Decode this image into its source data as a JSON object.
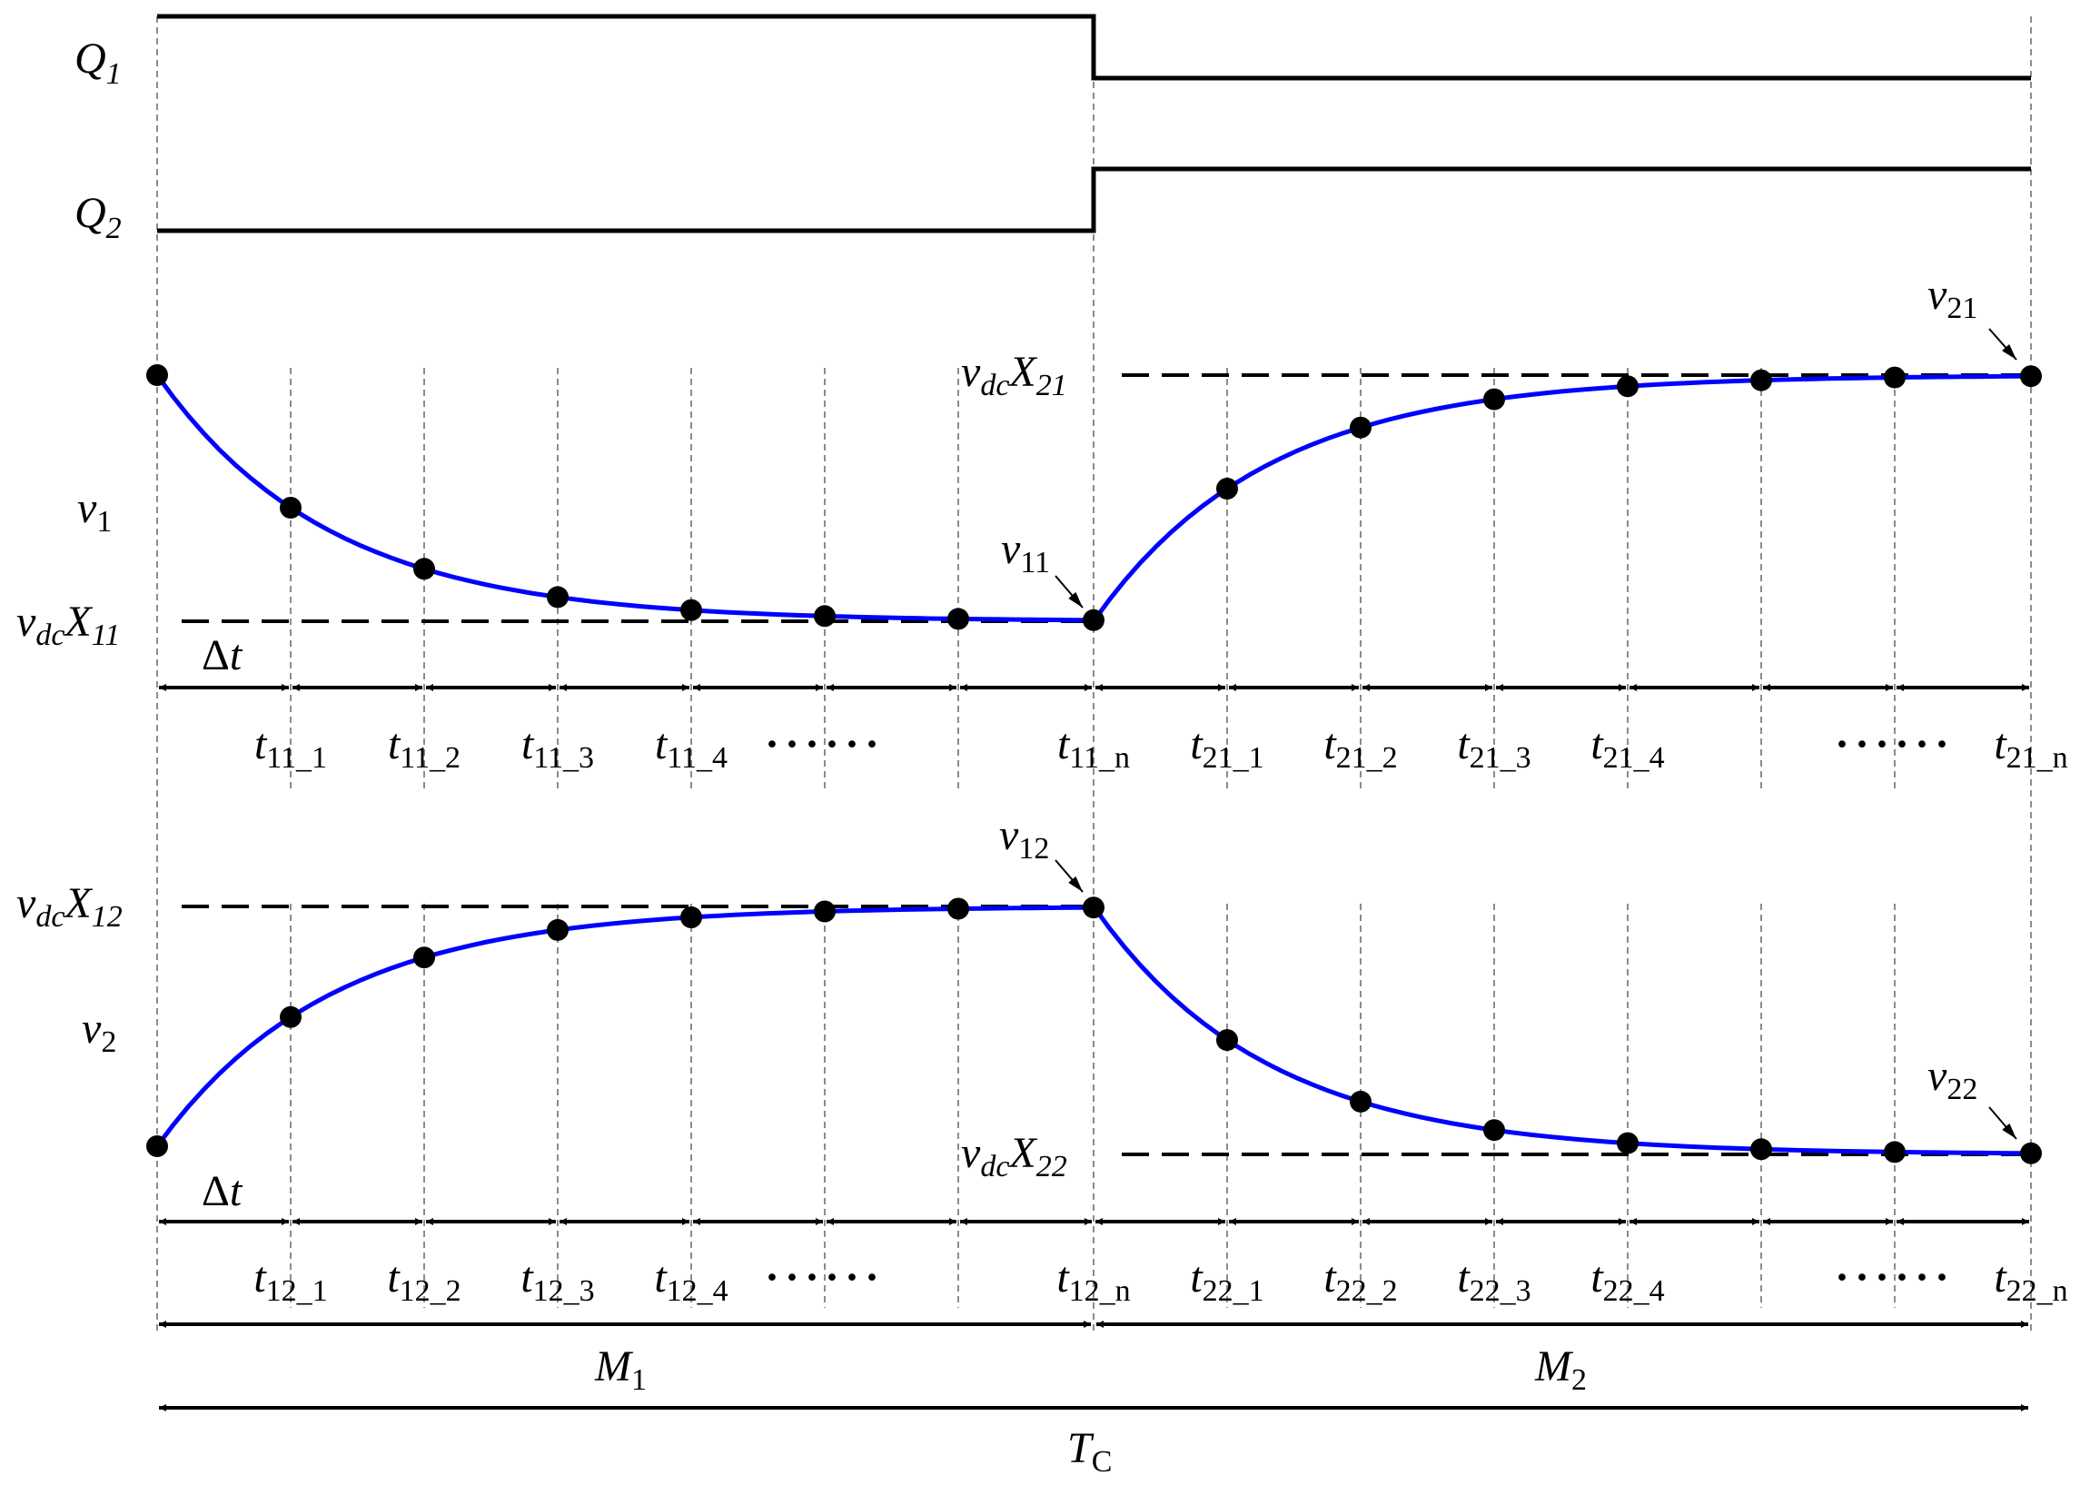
{
  "colors": {
    "waveform": "#0000ff",
    "lines": "#000000",
    "background": "#ffffff"
  },
  "signals": {
    "q1": {
      "base": "Q",
      "sub": "1"
    },
    "q2": {
      "base": "Q",
      "sub": "2"
    },
    "v1": {
      "base": "v",
      "sub": "1"
    },
    "v2": {
      "base": "v",
      "sub": "2"
    }
  },
  "levels": {
    "x11": {
      "pre": "v",
      "pre_sub": "dc",
      "base": "X",
      "sub": "11"
    },
    "x21": {
      "pre": "v",
      "pre_sub": "dc",
      "base": "X",
      "sub": "21"
    },
    "x12": {
      "pre": "v",
      "pre_sub": "dc",
      "base": "X",
      "sub": "12"
    },
    "x22": {
      "pre": "v",
      "pre_sub": "dc",
      "base": "X",
      "sub": "22"
    }
  },
  "points": {
    "v11": {
      "base": "v",
      "sub": "11"
    },
    "v21": {
      "base": "v",
      "sub": "21"
    },
    "v12": {
      "base": "v",
      "sub": "12"
    },
    "v22": {
      "base": "v",
      "sub": "22"
    }
  },
  "delta": {
    "sym": "Δ",
    "var": "t"
  },
  "time_labels_1": [
    {
      "base": "t",
      "sub": "11_1"
    },
    {
      "base": "t",
      "sub": "11_2"
    },
    {
      "base": "t",
      "sub": "11_3"
    },
    {
      "base": "t",
      "sub": "11_4"
    },
    {
      "text": "······"
    },
    {
      "base": "t",
      "sub": "11_n"
    },
    {
      "base": "t",
      "sub": "21_1"
    },
    {
      "base": "t",
      "sub": "21_2"
    },
    {
      "base": "t",
      "sub": "21_3"
    },
    {
      "base": "t",
      "sub": "21_4"
    },
    {
      "text": "······"
    },
    {
      "base": "t",
      "sub": "21_n"
    }
  ],
  "time_labels_2": [
    {
      "base": "t",
      "sub": "12_1"
    },
    {
      "base": "t",
      "sub": "12_2"
    },
    {
      "base": "t",
      "sub": "12_3"
    },
    {
      "base": "t",
      "sub": "12_4"
    },
    {
      "text": "······"
    },
    {
      "base": "t",
      "sub": "12_n"
    },
    {
      "base": "t",
      "sub": "22_1"
    },
    {
      "base": "t",
      "sub": "22_2"
    },
    {
      "base": "t",
      "sub": "22_3"
    },
    {
      "base": "t",
      "sub": "22_4"
    },
    {
      "text": "······"
    },
    {
      "base": "t",
      "sub": "22_n"
    }
  ],
  "spans": {
    "m1": {
      "base": "M",
      "sub": "1"
    },
    "m2": {
      "base": "M",
      "sub": "2"
    },
    "tc": {
      "base": "T",
      "sub": "C"
    }
  }
}
